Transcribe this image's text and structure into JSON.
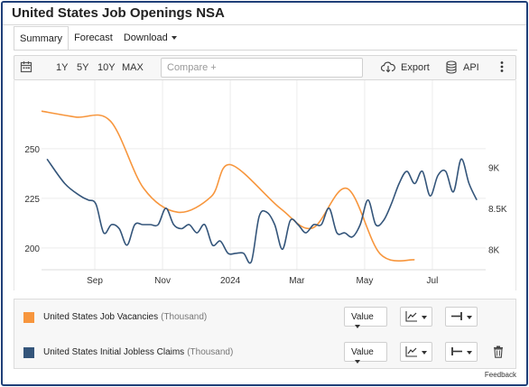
{
  "title": "United States Job Openings NSA",
  "tabs": [
    {
      "label": "Summary"
    },
    {
      "label": "Forecast"
    },
    {
      "label": "Download"
    }
  ],
  "toolbar": {
    "ranges": [
      "1Y",
      "5Y",
      "10Y",
      "MAX"
    ],
    "compare_placeholder": "Compare +",
    "export_label": "Export",
    "api_label": "API"
  },
  "legend": [
    {
      "name": "United States Job Vacancies",
      "unit": "(Thousand)",
      "color": "#f7963d",
      "mode": "Value"
    },
    {
      "name": "United States Initial Jobless Claims",
      "unit": "(Thousand)",
      "color": "#34557a",
      "mode": "Value"
    }
  ],
  "feedback_label": "Feedback",
  "colors": {
    "frame": "#1f3f78",
    "vacancies": "#f7963d",
    "claims": "#34557a"
  },
  "chart_data": {
    "type": "line",
    "x_ticks": [
      "Sep",
      "Nov",
      "2024",
      "Mar",
      "May",
      "Jul"
    ],
    "y_left": {
      "ticks": [
        "200",
        "225",
        "250"
      ],
      "range": [
        189,
        280
      ]
    },
    "y_right": {
      "ticks": [
        "8K",
        "8.5K",
        "9K"
      ],
      "range": [
        7750,
        9950
      ]
    },
    "grid": true,
    "series": [
      {
        "name": "United States Job Vacancies",
        "axis": "left",
        "x": [
          "2023-07-15",
          "2023-08-15",
          "2023-09-15",
          "2023-10-15",
          "2023-11-15",
          "2023-12-15",
          "2024-01-01",
          "2024-02-15",
          "2024-03-15",
          "2024-04-15",
          "2024-05-15",
          "2024-06-15"
        ],
        "values": [
          269,
          266,
          264,
          230,
          218,
          226,
          242,
          220,
          210,
          230,
          197,
          194
        ]
      },
      {
        "name": "United States Initial Jobless Claims",
        "axis": "right",
        "x": [
          "2023-07-20",
          "2023-08-05",
          "2023-08-19",
          "2023-08-26",
          "2023-09-02",
          "2023-09-09",
          "2023-09-16",
          "2023-09-23",
          "2023-09-30",
          "2023-10-07",
          "2023-10-14",
          "2023-10-21",
          "2023-10-28",
          "2023-11-04",
          "2023-11-11",
          "2023-11-18",
          "2023-11-25",
          "2023-12-02",
          "2023-12-09",
          "2023-12-16",
          "2023-12-23",
          "2023-12-30",
          "2024-01-06",
          "2024-01-13",
          "2024-01-20",
          "2024-01-27",
          "2024-02-03",
          "2024-02-10",
          "2024-02-17",
          "2024-02-24",
          "2024-03-02",
          "2024-03-09",
          "2024-03-16",
          "2024-03-23",
          "2024-03-30",
          "2024-04-06",
          "2024-04-13",
          "2024-04-20",
          "2024-04-27",
          "2024-05-04",
          "2024-05-11",
          "2024-05-18",
          "2024-05-25",
          "2024-06-01",
          "2024-06-08",
          "2024-06-15",
          "2024-06-22",
          "2024-06-29",
          "2024-07-06",
          "2024-07-13",
          "2024-07-20",
          "2024-07-27",
          "2024-08-03",
          "2024-08-10"
        ],
        "values": [
          9100,
          8800,
          8650,
          8600,
          8550,
          8200,
          8300,
          8250,
          8050,
          8300,
          8300,
          8300,
          8300,
          8500,
          8300,
          8250,
          8300,
          8200,
          8300,
          8050,
          8100,
          7950,
          7950,
          7950,
          7850,
          8400,
          8450,
          8300,
          8000,
          8350,
          8300,
          8200,
          8300,
          8300,
          8500,
          8200,
          8200,
          8150,
          8300,
          8600,
          8300,
          8350,
          8550,
          8800,
          8950,
          8800,
          8950,
          8650,
          8900,
          8950,
          8700,
          9100,
          8800,
          8600
        ]
      }
    ]
  }
}
